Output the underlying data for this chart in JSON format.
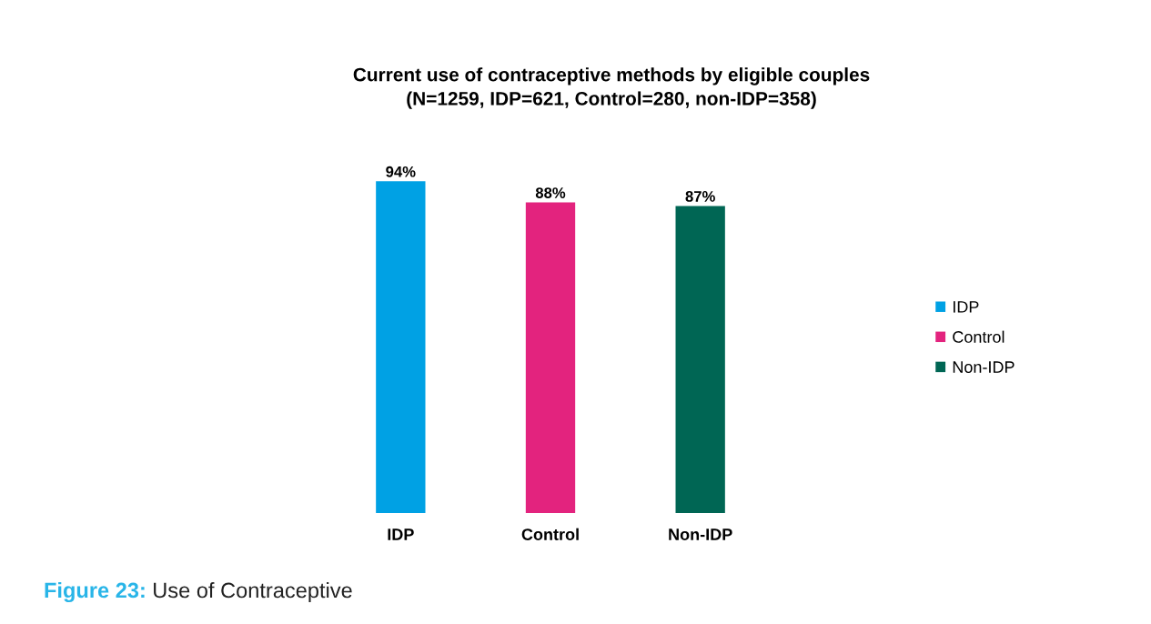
{
  "chart_data": {
    "type": "bar",
    "title": "Current use of contraceptive methods by eligible couples\n(N=1259, IDP=621, Control=280, non-IDP=358)",
    "categories": [
      "IDP",
      "Control",
      "Non-IDP"
    ],
    "series": [
      {
        "name": "IDP",
        "color": "#00a1e4",
        "values": [
          94,
          null,
          null
        ],
        "value_labels": [
          "94%",
          null,
          null
        ]
      },
      {
        "name": "Control",
        "color": "#e3237e",
        "values": [
          null,
          88,
          null
        ],
        "value_labels": [
          null,
          "88%",
          null
        ]
      },
      {
        "name": "Non-IDP",
        "color": "#006654",
        "values": [
          null,
          null,
          87
        ],
        "value_labels": [
          null,
          null,
          "87%"
        ]
      }
    ],
    "legend": "right",
    "annotations": [
      "Figure 23:",
      "Use of Contraceptive"
    ]
  }
}
